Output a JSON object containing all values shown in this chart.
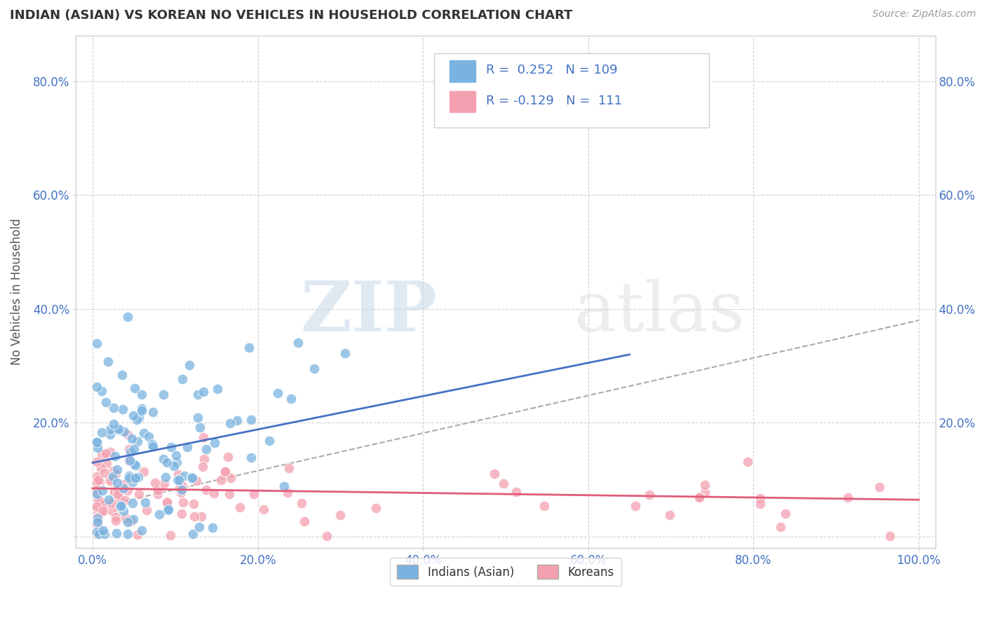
{
  "title": "INDIAN (ASIAN) VS KOREAN NO VEHICLES IN HOUSEHOLD CORRELATION CHART",
  "source": "Source: ZipAtlas.com",
  "ylabel": "No Vehicles in Household",
  "xlim": [
    -0.02,
    1.02
  ],
  "ylim": [
    -0.02,
    0.88
  ],
  "xticks": [
    0.0,
    0.2,
    0.4,
    0.6,
    0.8,
    1.0
  ],
  "xtick_labels": [
    "0.0%",
    "20.0%",
    "40.0%",
    "60.0%",
    "80.0%",
    "100.0%"
  ],
  "yticks": [
    0.0,
    0.2,
    0.4,
    0.6,
    0.8
  ],
  "ytick_labels": [
    "",
    "20.0%",
    "40.0%",
    "60.0%",
    "80.0%"
  ],
  "ytick_right_labels": [
    "",
    "20.0%",
    "40.0%",
    "60.0%",
    "80.0%"
  ],
  "legend_r_indian": "0.252",
  "legend_n_indian": "109",
  "legend_r_korean": "-0.129",
  "legend_n_korean": "111",
  "indian_color": "#7ab3e0",
  "korean_color": "#f4a0b0",
  "indian_line_color": "#4472c4",
  "korean_line_color": "#e05c7a",
  "dashed_line_color": "#aaaaaa",
  "background_color": "#ffffff",
  "grid_color": "#cccccc",
  "title_color": "#333333",
  "axis_label_color": "#555555",
  "tick_color": "#4472c4",
  "legend_text_color": "#4472c4",
  "watermark_zip": "ZIP",
  "watermark_atlas": "atlas",
  "indian_line_x0": 0.0,
  "indian_line_y0": 0.13,
  "indian_line_x1": 0.65,
  "indian_line_y1": 0.32,
  "korean_line_x0": 0.0,
  "korean_line_y0": 0.085,
  "korean_line_x1": 1.0,
  "korean_line_y1": 0.065,
  "dashed_line_x0": 0.0,
  "dashed_line_y0": 0.05,
  "dashed_line_x1": 1.0,
  "dashed_line_y1": 0.38
}
